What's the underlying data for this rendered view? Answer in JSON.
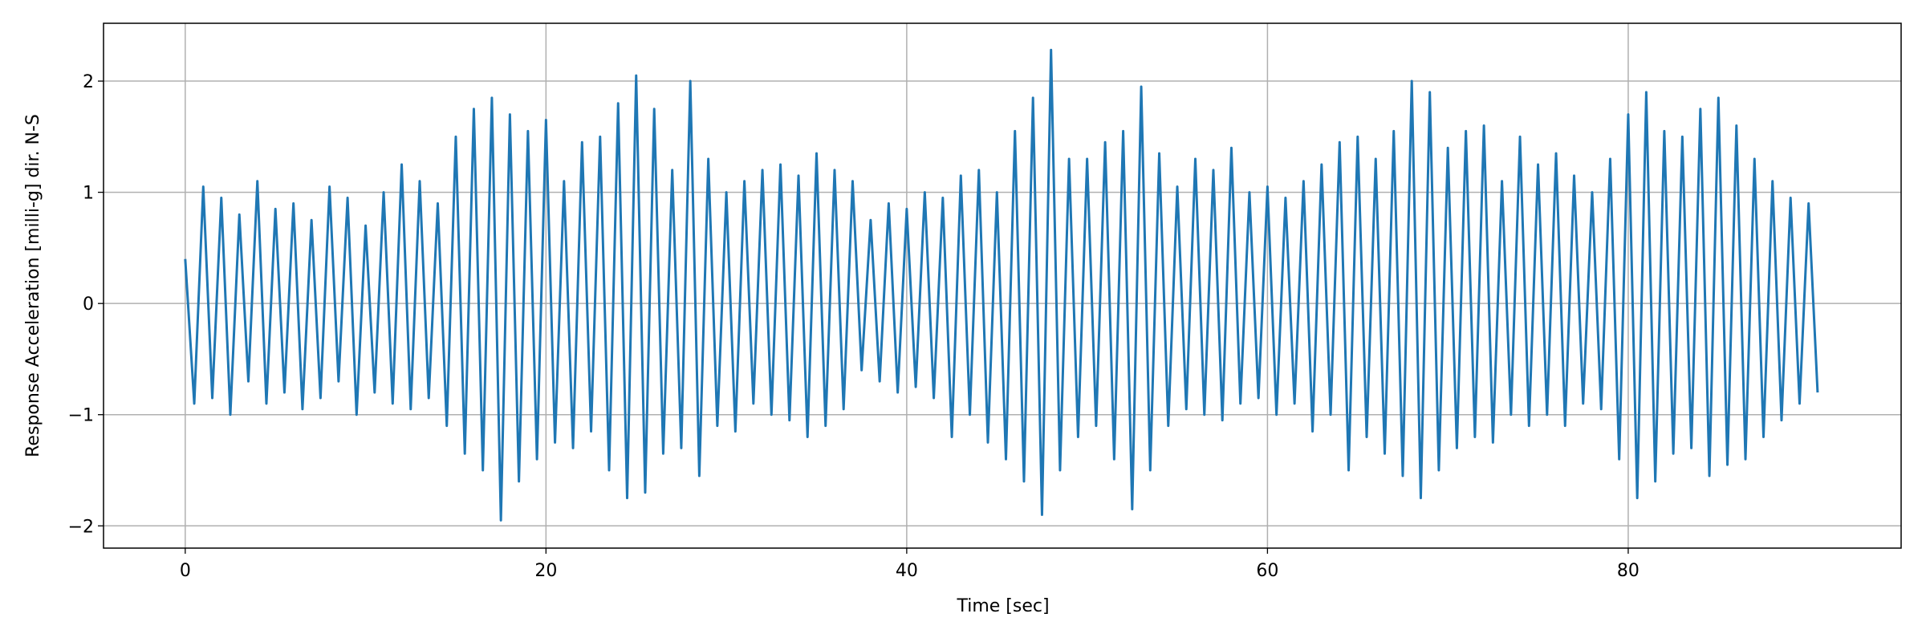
{
  "chart_data": {
    "type": "line",
    "xlabel": "Time [sec]",
    "ylabel": "Response Acceleration [milli-g] dir. N-S",
    "color": "#1f77b4",
    "grid": true,
    "xlim": [
      -4.53,
      95.13
    ],
    "ylim": [
      -2.2,
      2.52
    ],
    "xticks": [
      0,
      20,
      40,
      60,
      80
    ],
    "yticks": [
      {
        "value": -2,
        "label": "−2"
      },
      {
        "value": -1,
        "label": "−1"
      },
      0,
      1,
      2
    ],
    "x": [
      0,
      0.5,
      1,
      1.5,
      2,
      2.5,
      3,
      3.5,
      4,
      4.5,
      5,
      5.5,
      6,
      6.5,
      7,
      7.5,
      8,
      8.5,
      9,
      9.5,
      10,
      10.5,
      11,
      11.5,
      12,
      12.5,
      13,
      13.5,
      14,
      14.5,
      15,
      15.5,
      16,
      16.5,
      17,
      17.5,
      18,
      18.5,
      19,
      19.5,
      20,
      20.5,
      21,
      21.5,
      22,
      22.5,
      23,
      23.5,
      24,
      24.5,
      25,
      25.5,
      26,
      26.5,
      27,
      27.5,
      28,
      28.5,
      29,
      29.5,
      30,
      30.5,
      31,
      31.5,
      32,
      32.5,
      33,
      33.5,
      34,
      34.5,
      35,
      35.5,
      36,
      36.5,
      37,
      37.5,
      38,
      38.5,
      39,
      39.5,
      40,
      40.5,
      41,
      41.5,
      42,
      42.5,
      43,
      43.5,
      44,
      44.5,
      45,
      45.5,
      46,
      46.5,
      47,
      47.5,
      48,
      48.5,
      49,
      49.5,
      50,
      50.5,
      51,
      51.5,
      52,
      52.5,
      53,
      53.5,
      54,
      54.5,
      55,
      55.5,
      56,
      56.5,
      57,
      57.5,
      58,
      58.5,
      59,
      59.5,
      60,
      60.5,
      61,
      61.5,
      62,
      62.5,
      63,
      63.5,
      64,
      64.5,
      65,
      65.5,
      66,
      66.5,
      67,
      67.5,
      68,
      68.5,
      69,
      69.5,
      70,
      70.5,
      71,
      71.5,
      72,
      72.5,
      73,
      73.5,
      74,
      74.5,
      75,
      75.5,
      76,
      76.5,
      77,
      77.5,
      78,
      78.5,
      79,
      79.5,
      80,
      80.5,
      81,
      81.5,
      82,
      82.5,
      83,
      83.5,
      84,
      84.5,
      85,
      85.5,
      86,
      86.5,
      87,
      87.5,
      88,
      88.5,
      89,
      89.5,
      90,
      90.5
    ],
    "values": [
      0.4,
      -0.9,
      1.05,
      -0.85,
      0.95,
      -1.0,
      0.8,
      -0.7,
      1.1,
      -0.9,
      0.85,
      -0.8,
      0.9,
      -0.95,
      0.75,
      -0.85,
      1.05,
      -0.7,
      0.95,
      -1.0,
      0.7,
      -0.8,
      1.0,
      -0.9,
      1.25,
      -0.95,
      1.1,
      -0.85,
      0.9,
      -1.1,
      1.5,
      -1.35,
      1.75,
      -1.5,
      1.85,
      -1.95,
      1.7,
      -1.6,
      1.55,
      -1.4,
      1.65,
      -1.25,
      1.1,
      -1.3,
      1.45,
      -1.15,
      1.5,
      -1.5,
      1.8,
      -1.75,
      2.05,
      -1.7,
      1.75,
      -1.35,
      1.2,
      -1.3,
      2.0,
      -1.55,
      1.3,
      -1.1,
      1.0,
      -1.15,
      1.1,
      -0.9,
      1.2,
      -1.0,
      1.25,
      -1.05,
      1.15,
      -1.2,
      1.35,
      -1.1,
      1.2,
      -0.95,
      1.1,
      -0.6,
      0.75,
      -0.7,
      0.9,
      -0.8,
      0.85,
      -0.75,
      1.0,
      -0.85,
      0.95,
      -1.2,
      1.15,
      -1.0,
      1.2,
      -1.25,
      1.0,
      -1.4,
      1.55,
      -1.6,
      1.85,
      -1.9,
      2.28,
      -1.5,
      1.3,
      -1.2,
      1.3,
      -1.1,
      1.45,
      -1.4,
      1.55,
      -1.85,
      1.95,
      -1.5,
      1.35,
      -1.1,
      1.05,
      -0.95,
      1.3,
      -1.0,
      1.2,
      -1.05,
      1.4,
      -0.9,
      1.0,
      -0.85,
      1.05,
      -1.0,
      0.95,
      -0.9,
      1.1,
      -1.15,
      1.25,
      -1.0,
      1.45,
      -1.5,
      1.5,
      -1.2,
      1.3,
      -1.35,
      1.55,
      -1.55,
      2.0,
      -1.75,
      1.9,
      -1.5,
      1.4,
      -1.3,
      1.55,
      -1.2,
      1.6,
      -1.25,
      1.1,
      -1.0,
      1.5,
      -1.1,
      1.25,
      -1.0,
      1.35,
      -1.1,
      1.15,
      -0.9,
      1.0,
      -0.95,
      1.3,
      -1.4,
      1.7,
      -1.75,
      1.9,
      -1.6,
      1.55,
      -1.35,
      1.5,
      -1.3,
      1.75,
      -1.55,
      1.85,
      -1.45,
      1.6,
      -1.4,
      1.3,
      -1.2,
      1.1,
      -1.05,
      0.95,
      -0.9,
      0.9,
      -0.8
    ]
  }
}
